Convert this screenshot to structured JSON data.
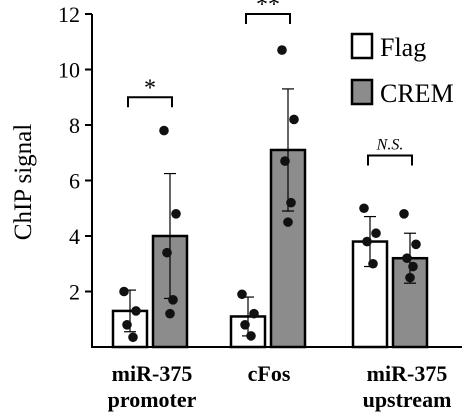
{
  "chart_data": {
    "type": "bar",
    "ylabel": "ChIP signal",
    "ylim": [
      0,
      12
    ],
    "yticks": [
      "2",
      "4",
      "6",
      "8",
      "10",
      "12"
    ],
    "categories": [
      {
        "line1": "miR-375",
        "line2": "promoter"
      },
      {
        "line1": "cFos",
        "line2": ""
      },
      {
        "line1": "miR-375",
        "line2": "upstream"
      }
    ],
    "series": [
      {
        "name": "Flag",
        "fill": "#ffffff",
        "values": [
          1.3,
          1.1,
          3.8
        ],
        "errors": [
          0.75,
          0.7,
          0.9
        ],
        "points": [
          [
            2.0,
            1.3,
            0.8,
            0.35
          ],
          [
            1.9,
            1.2,
            0.8,
            0.4
          ],
          [
            5.0,
            4.1,
            3.8,
            3.0
          ]
        ]
      },
      {
        "name": "CREM",
        "fill": "#8c8c8c",
        "values": [
          4.0,
          7.1,
          3.2
        ],
        "errors": [
          2.25,
          2.2,
          0.9
        ],
        "points": [
          [
            7.8,
            4.8,
            3.4,
            1.7,
            1.2
          ],
          [
            10.7,
            8.2,
            6.7,
            5.2,
            4.5
          ],
          [
            4.8,
            3.7,
            3.2,
            2.9,
            2.5
          ]
        ]
      }
    ],
    "significance": [
      "*",
      "**",
      "N.S."
    ],
    "legend_position": "top-right"
  }
}
